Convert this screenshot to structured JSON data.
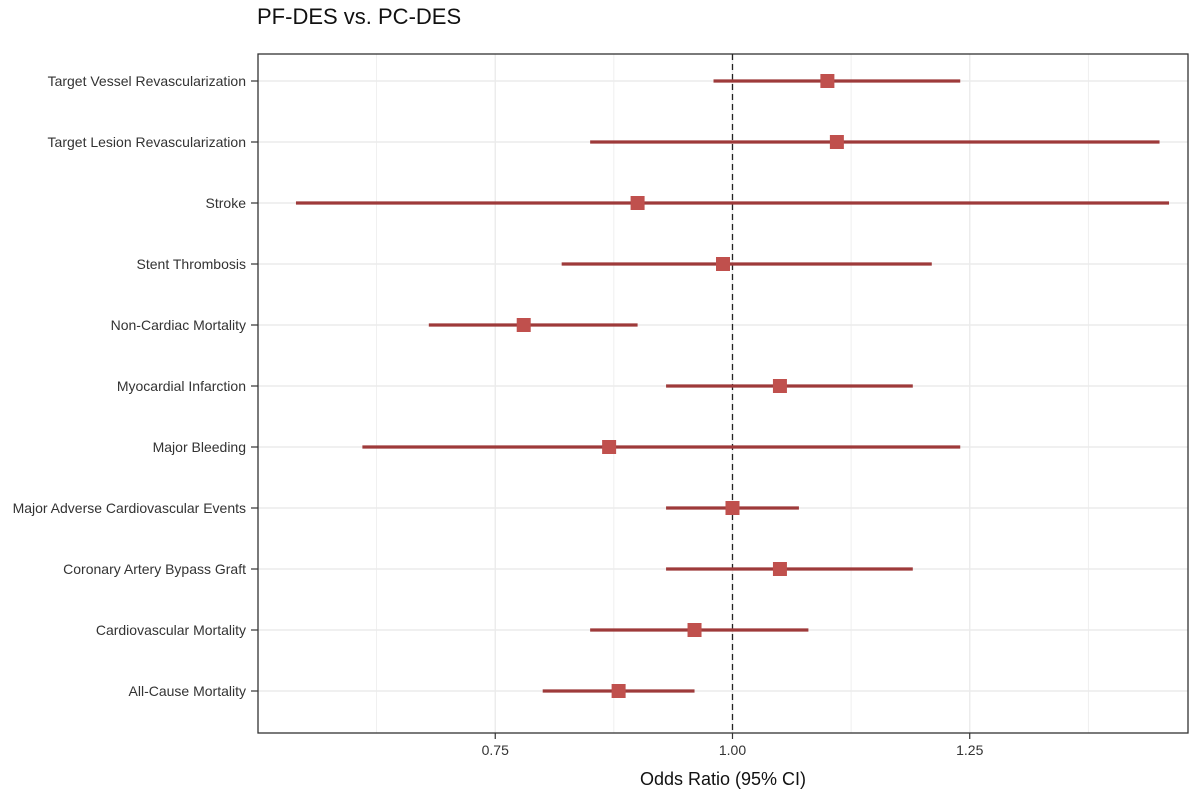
{
  "chart_data": {
    "type": "forest",
    "title": "PF-DES vs. PC-DES",
    "xlabel": "Odds Ratio (95% CI)",
    "ylabel": "",
    "xlim": [
      0.5,
      1.48
    ],
    "xticks": [
      0.75,
      1.0,
      1.25
    ],
    "xtick_labels": [
      "0.75",
      "1.00",
      "1.25"
    ],
    "reference_line": 1.0,
    "grid": true,
    "colors": {
      "marker": "#c0504d",
      "ci_line": "#9e3a3a",
      "reference": "#222222",
      "grid": "#ebebeb"
    },
    "rows": [
      {
        "label": "Target Vessel Revascularization",
        "or": 1.1,
        "lower": 0.98,
        "upper": 1.24
      },
      {
        "label": "Target Lesion Revascularization",
        "or": 1.11,
        "lower": 0.85,
        "upper": 1.45
      },
      {
        "label": "Stroke",
        "or": 0.9,
        "lower": 0.54,
        "upper": 1.46
      },
      {
        "label": "Stent Thrombosis",
        "or": 0.99,
        "lower": 0.82,
        "upper": 1.21
      },
      {
        "label": "Non-Cardiac Mortality",
        "or": 0.78,
        "lower": 0.68,
        "upper": 0.9
      },
      {
        "label": "Myocardial Infarction",
        "or": 1.05,
        "lower": 0.93,
        "upper": 1.19
      },
      {
        "label": "Major Bleeding",
        "or": 0.87,
        "lower": 0.61,
        "upper": 1.24
      },
      {
        "label": "Major Adverse Cardiovascular Events",
        "or": 1.0,
        "lower": 0.93,
        "upper": 1.07
      },
      {
        "label": "Coronary Artery Bypass Graft",
        "or": 1.05,
        "lower": 0.93,
        "upper": 1.19
      },
      {
        "label": "Cardiovascular Mortality",
        "or": 0.96,
        "lower": 0.85,
        "upper": 1.08
      },
      {
        "label": "All-Cause Mortality",
        "or": 0.88,
        "lower": 0.8,
        "upper": 0.96
      }
    ]
  }
}
